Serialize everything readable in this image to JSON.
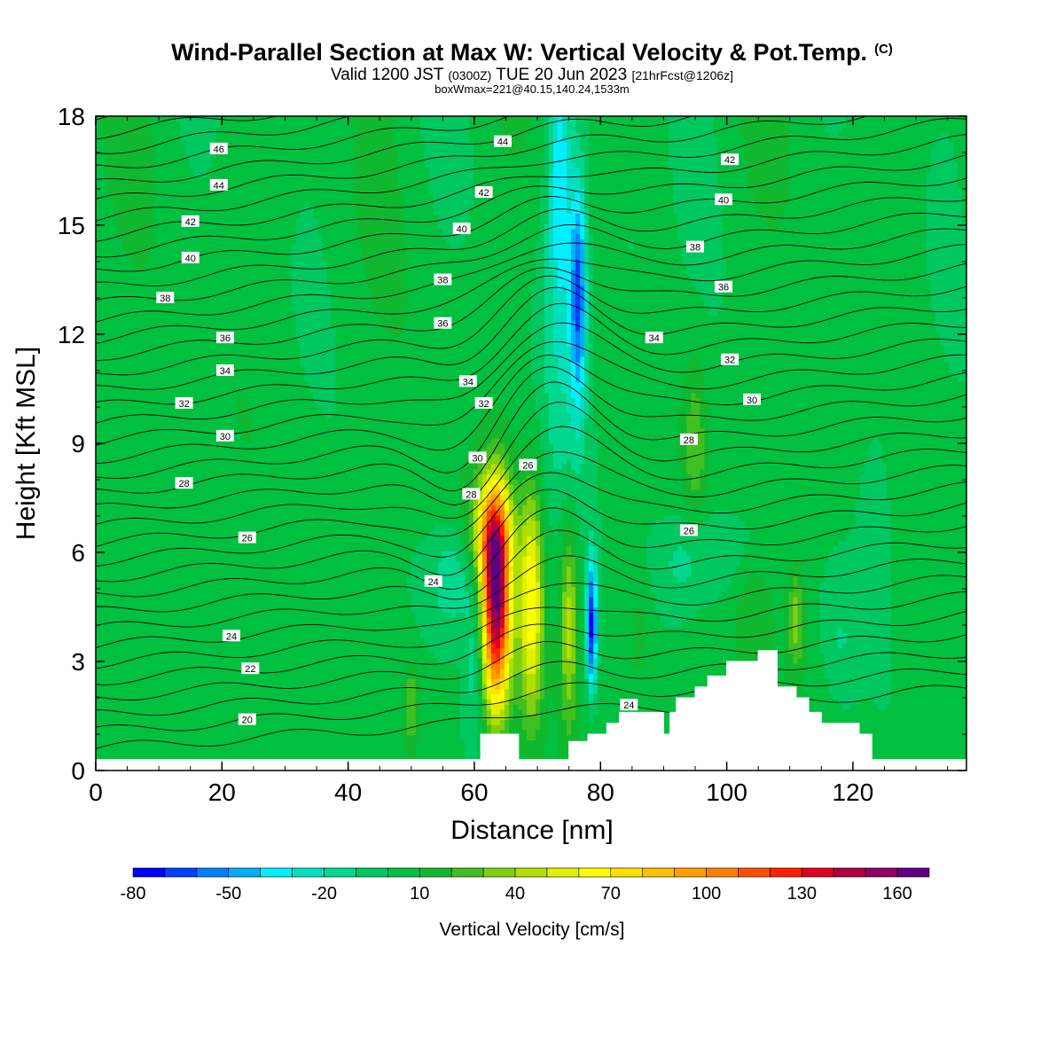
{
  "title": {
    "main": "Wind-Parallel Section at Max W: Vertical Velocity & Pot.Temp.",
    "copyright": "(C)",
    "valid_prefix": "Valid 1200 JST",
    "valid_utc": "(0300Z)",
    "valid_date": "TUE 20 Jun 2023",
    "forecast": "[21hrFcst@1206z]",
    "box_info": "boxWmax=221@40.15,140.24,1533m"
  },
  "chart_data": {
    "type": "heatmap",
    "xlabel": "Distance [nm]",
    "ylabel": "Height [Kft MSL]",
    "xlim": [
      0,
      138
    ],
    "ylim": [
      0,
      18
    ],
    "x_ticks": [
      "0",
      "20",
      "40",
      "60",
      "80",
      "100",
      "120"
    ],
    "y_ticks": [
      "0",
      "3",
      "6",
      "9",
      "12",
      "15",
      "18"
    ],
    "colorbar": {
      "title": "Vertical Velocity [cm/s]",
      "tick_labels": [
        "-80",
        "-50",
        "-20",
        "10",
        "40",
        "70",
        "100",
        "130",
        "160"
      ],
      "levels_min": -80,
      "levels_step": 10,
      "colors": [
        "#0000ff",
        "#0040ff",
        "#0080ff",
        "#00b0ff",
        "#00f0ff",
        "#00e0c0",
        "#00d890",
        "#00c860",
        "#00c040",
        "#10b830",
        "#40c020",
        "#80d010",
        "#b0e000",
        "#e0f000",
        "#ffff00",
        "#ffe000",
        "#ffc000",
        "#ffa000",
        "#ff8000",
        "#ff5000",
        "#ff2000",
        "#e00020",
        "#b00040",
        "#900060",
        "#600080"
      ]
    },
    "vertical_velocity_maxima": [
      {
        "x": 50,
        "z": 1.8,
        "w": 40
      },
      {
        "x": 63.5,
        "z": 4.5,
        "w": 160
      },
      {
        "x": 69,
        "z": 4.5,
        "w": 70
      },
      {
        "x": 75,
        "z": 4.0,
        "w": 50
      },
      {
        "x": 95,
        "z": 8.8,
        "w": 30
      },
      {
        "x": 111,
        "z": 4.2,
        "w": 40
      }
    ],
    "vertical_velocity_minima": [
      {
        "x": 78.5,
        "z": 4.0,
        "w": -70
      },
      {
        "x": 76.5,
        "z": 13.5,
        "w": -50
      }
    ],
    "theta_contour_labels": [
      {
        "text": "46",
        "x": 19.5,
        "z": 17.1
      },
      {
        "text": "44",
        "x": 19.5,
        "z": 16.1
      },
      {
        "text": "42",
        "x": 15.0,
        "z": 15.1
      },
      {
        "text": "40",
        "x": 15.0,
        "z": 14.1
      },
      {
        "text": "38",
        "x": 11.0,
        "z": 13.0
      },
      {
        "text": "36",
        "x": 20.5,
        "z": 11.9
      },
      {
        "text": "34",
        "x": 20.5,
        "z": 11.0
      },
      {
        "text": "32",
        "x": 14.0,
        "z": 10.1
      },
      {
        "text": "30",
        "x": 20.5,
        "z": 9.2
      },
      {
        "text": "28",
        "x": 14.0,
        "z": 7.9
      },
      {
        "text": "26",
        "x": 24.0,
        "z": 6.4
      },
      {
        "text": "24",
        "x": 21.5,
        "z": 3.7
      },
      {
        "text": "22",
        "x": 24.5,
        "z": 2.8
      },
      {
        "text": "20",
        "x": 24.0,
        "z": 1.4
      },
      {
        "text": "44",
        "x": 64.5,
        "z": 17.3
      },
      {
        "text": "42",
        "x": 61.5,
        "z": 15.9
      },
      {
        "text": "40",
        "x": 58.0,
        "z": 14.9
      },
      {
        "text": "38",
        "x": 55.0,
        "z": 13.5
      },
      {
        "text": "36",
        "x": 55.0,
        "z": 12.3
      },
      {
        "text": "34",
        "x": 59.0,
        "z": 10.7
      },
      {
        "text": "32",
        "x": 61.5,
        "z": 10.1
      },
      {
        "text": "30",
        "x": 60.5,
        "z": 8.6
      },
      {
        "text": "28",
        "x": 59.5,
        "z": 7.6
      },
      {
        "text": "26",
        "x": 68.5,
        "z": 8.4
      },
      {
        "text": "24",
        "x": 53.5,
        "z": 5.2
      },
      {
        "text": "24",
        "x": 84.5,
        "z": 1.8
      },
      {
        "text": "42",
        "x": 100.5,
        "z": 16.8
      },
      {
        "text": "40",
        "x": 99.5,
        "z": 15.7
      },
      {
        "text": "38",
        "x": 95.0,
        "z": 14.4
      },
      {
        "text": "36",
        "x": 99.5,
        "z": 13.3
      },
      {
        "text": "34",
        "x": 88.5,
        "z": 11.9
      },
      {
        "text": "32",
        "x": 100.5,
        "z": 11.3
      },
      {
        "text": "30",
        "x": 104.0,
        "z": 10.2
      },
      {
        "text": "28",
        "x": 94.0,
        "z": 9.1
      },
      {
        "text": "26",
        "x": 94.0,
        "z": 6.6
      }
    ],
    "terrain": {
      "x": [
        0,
        60,
        61,
        67,
        71,
        75,
        78,
        81,
        83,
        85,
        90,
        91,
        92,
        95,
        97,
        99,
        100,
        105,
        108,
        111,
        113,
        115,
        117,
        121,
        123,
        138
      ],
      "z": [
        0.3,
        0.3,
        1.0,
        0.3,
        0.3,
        0.8,
        1.0,
        1.3,
        1.6,
        1.6,
        1.0,
        1.6,
        2.0,
        2.3,
        2.6,
        2.6,
        3.0,
        3.3,
        2.3,
        2.0,
        1.6,
        1.3,
        1.3,
        1.0,
        0.3,
        0.3
      ]
    }
  }
}
